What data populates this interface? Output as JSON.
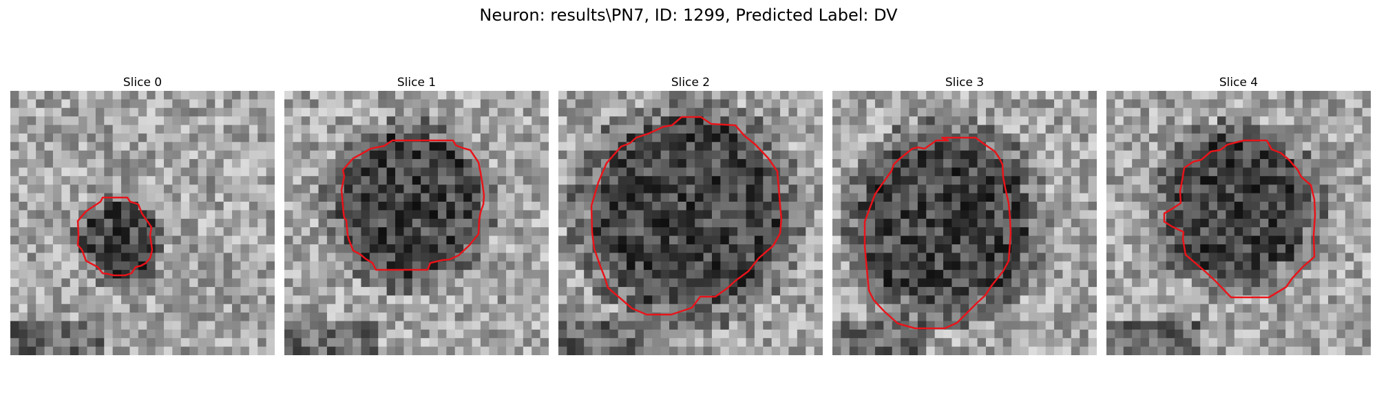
{
  "title": "Neuron: results\\PN7, ID: 1299, Predicted Label: DV",
  "colormap": "gray",
  "contour_color": "#e8141a",
  "slices": [
    {
      "label": "Slice 0"
    },
    {
      "label": "Slice 1"
    },
    {
      "label": "Slice 2"
    },
    {
      "label": "Slice 3"
    },
    {
      "label": "Slice 4"
    }
  ]
}
